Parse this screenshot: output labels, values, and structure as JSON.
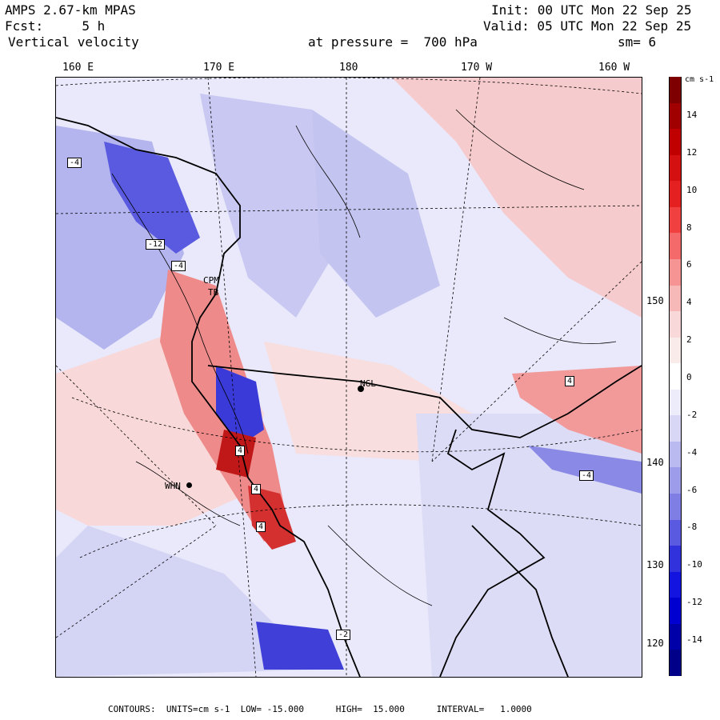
{
  "header": {
    "model": "AMPS 2.67-km MPAS",
    "fcst_label": "Fcst:",
    "fcst_value": "5 h",
    "variable": "Vertical velocity",
    "level_text": "at pressure =  700 hPa",
    "init": "Init: 00 UTC Mon 22 Sep 25",
    "valid": "Valid: 05 UTC Mon 22 Sep 25",
    "smoothing": "sm= 6"
  },
  "lon_labels": [
    "160 E",
    "170 E",
    "180",
    "170 W",
    "160 W"
  ],
  "lat_labels": [
    "150 W",
    "140 W",
    "130 W",
    "120 W"
  ],
  "colorbar": {
    "unit": "cm s-1",
    "ticks": [
      "14",
      "12",
      "10",
      "8",
      "6",
      "4",
      "2",
      "0",
      "-2",
      "-4",
      "-6",
      "-8",
      "-10",
      "-12",
      "-14"
    ],
    "colors": [
      "#7f0000",
      "#a00000",
      "#c00000",
      "#d41010",
      "#e42020",
      "#f04040",
      "#f46a6a",
      "#f69494",
      "#f7b8b8",
      "#f8d8d8",
      "#faebeb",
      "#ffffff",
      "#ececfb",
      "#d8d8f6",
      "#babaf0",
      "#9c9cea",
      "#7e7ee4",
      "#5a5ae0",
      "#3232dc",
      "#1414e0",
      "#0000d0",
      "#0000a8",
      "#000088"
    ]
  },
  "stations": [
    {
      "label": "CPM"
    },
    {
      "label": "TB"
    },
    {
      "label": "NGL"
    },
    {
      "label": "WHN"
    }
  ],
  "contour_labels": [
    "-4",
    "-12",
    "-4",
    "4",
    "4",
    "4",
    "-4",
    "-2",
    "4"
  ],
  "footer": "CONTOURS:  UNITS=cm s-1  LOW= -15.000      HIGH=  15.000      INTERVAL=   1.0000",
  "colors": {
    "ice_shelf": "#e9e9fb",
    "updraft": "#f4a0a0",
    "downdraft": "#9c9cea",
    "coast": "#000000"
  }
}
